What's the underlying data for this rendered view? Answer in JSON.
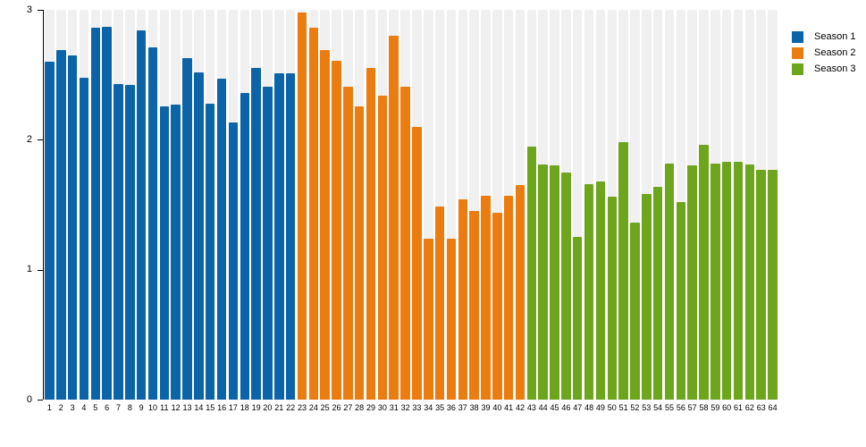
{
  "chart_data": {
    "type": "bar",
    "title": "",
    "xlabel": "",
    "ylabel": "",
    "ylim": [
      0,
      3
    ],
    "yticks": [
      "0",
      "1",
      "2",
      "3"
    ],
    "grid": "vertical background stripes, no gridlines",
    "legend_position": "top-right",
    "plot_background": {
      "stripe_color": "#f0f0f0",
      "gap_color": "#ffffff"
    },
    "axis_color": "#000000",
    "x_tick_labels": [
      "1",
      "2",
      "3",
      "4",
      "5",
      "6",
      "7",
      "8",
      "9",
      "10",
      "11",
      "12",
      "13",
      "14",
      "15",
      "16",
      "17",
      "18",
      "19",
      "20",
      "21",
      "22",
      "23",
      "24",
      "25",
      "26",
      "27",
      "28",
      "29",
      "30",
      "31",
      "32",
      "33",
      "34",
      "35",
      "36",
      "37",
      "38",
      "39",
      "40",
      "41",
      "42",
      "43",
      "44",
      "45",
      "46",
      "47",
      "48",
      "49",
      "50",
      "51",
      "52",
      "53",
      "54",
      "55",
      "56",
      "57",
      "58",
      "59",
      "60",
      "61",
      "62",
      "63",
      "64"
    ],
    "series": [
      {
        "name": "Season 1",
        "color": "#0b64a8",
        "first_episode": 1,
        "values": [
          2.6,
          2.69,
          2.65,
          2.48,
          2.86,
          2.87,
          2.43,
          2.42,
          2.84,
          2.71,
          2.26,
          2.27,
          2.63,
          2.52,
          2.28,
          2.47,
          2.13,
          2.36,
          2.55,
          2.41,
          2.51,
          2.51
        ]
      },
      {
        "name": "Season 2",
        "color": "#ea7c10",
        "first_episode": 23,
        "values": [
          2.98,
          2.86,
          2.69,
          2.61,
          2.41,
          2.26,
          2.55,
          2.34,
          2.8,
          2.41,
          2.1,
          1.24,
          1.49,
          1.24,
          1.54,
          1.45,
          1.57,
          1.44,
          1.57,
          1.65
        ]
      },
      {
        "name": "Season 3",
        "color": "#6da51c",
        "first_episode": 43,
        "values": [
          1.95,
          1.81,
          1.8,
          1.75,
          1.25,
          1.66,
          1.68,
          1.56,
          1.98,
          1.36,
          1.58,
          1.64,
          1.82,
          1.52,
          1.8,
          1.96,
          1.82,
          1.83,
          1.83,
          1.81,
          1.77,
          1.77
        ]
      }
    ]
  },
  "legend": {
    "items": [
      {
        "label": "Season 1",
        "color": "#0b64a8"
      },
      {
        "label": "Season 2",
        "color": "#ea7c10"
      },
      {
        "label": "Season 3",
        "color": "#6da51c"
      }
    ]
  }
}
